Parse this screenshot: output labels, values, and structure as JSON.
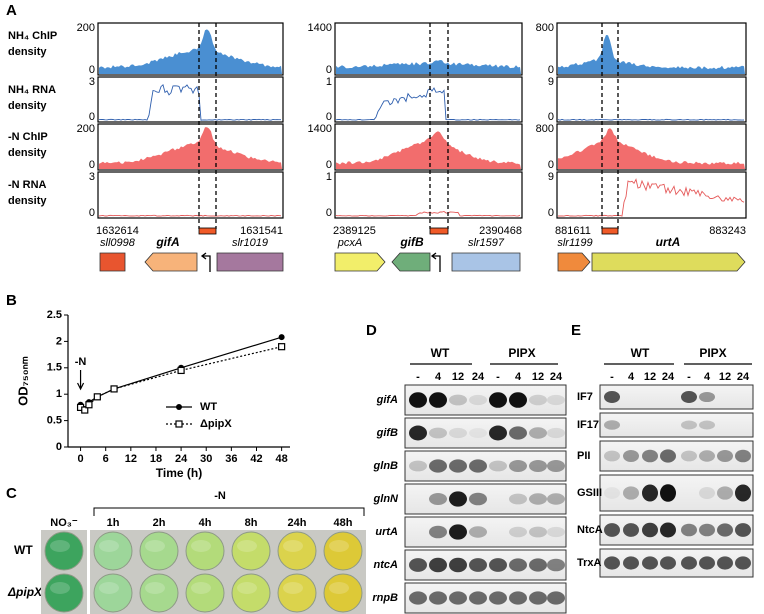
{
  "panel_labels": [
    "A",
    "B",
    "C",
    "D",
    "E"
  ],
  "panel_a": {
    "track_labels": [
      [
        "NH₄ ChIP",
        "density"
      ],
      [
        "NH₄ RNA",
        "density"
      ],
      [
        "-N ChIP",
        "density"
      ],
      [
        "-N RNA",
        "density"
      ]
    ],
    "loci": [
      {
        "ymax": [
          200,
          3,
          200,
          3
        ],
        "ymin": 0,
        "start": 1632614,
        "end": 1631541,
        "genes": [
          {
            "name": "sll0998",
            "color": "#e8552f"
          },
          {
            "name": "gifA",
            "color": "#f7b37a"
          },
          {
            "name": "slr1019",
            "color": "#a5789e"
          }
        ]
      },
      {
        "ymax": [
          1400,
          1,
          1400,
          1
        ],
        "ymin": 0,
        "start": 2389125,
        "end": 2390468,
        "genes": [
          {
            "name": "pcxA",
            "color": "#f2ee6a"
          },
          {
            "name": "gifB",
            "color": "#6fae7a"
          },
          {
            "name": "slr1597",
            "color": "#a9c4e6"
          }
        ]
      },
      {
        "ymax": [
          800,
          9,
          800,
          9
        ],
        "ymin": 0,
        "start": 881611,
        "end": 883243,
        "genes": [
          {
            "name": "slr1199",
            "color": "#f08a3c"
          },
          {
            "name": "urtA",
            "color": "#dedc5c"
          }
        ]
      }
    ]
  },
  "chart_data": {
    "type": "line",
    "x_label": "Time (h)",
    "y_label": "OD₇₅₀ₙₘ",
    "x": [
      0,
      1,
      2,
      4,
      8,
      24,
      48
    ],
    "series": [
      {
        "name": "WT",
        "color": "#000000",
        "marker": "circle",
        "linestyle": "solid",
        "values": [
          0.8,
          0.72,
          0.85,
          0.95,
          1.1,
          1.5,
          2.08
        ]
      },
      {
        "name": "ΔpipX",
        "color": "#000000",
        "marker": "square",
        "linestyle": "dotted",
        "values": [
          0.75,
          0.7,
          0.8,
          0.95,
          1.1,
          1.45,
          1.9
        ]
      }
    ],
    "xlim": [
      -3,
      50
    ],
    "ylim": [
      0,
      2.5
    ],
    "xticks": [
      0,
      6,
      12,
      18,
      24,
      30,
      36,
      42,
      48
    ],
    "yticks": [
      0,
      0.5,
      1,
      1.5,
      2,
      2.5
    ],
    "legend": "lower right",
    "annotation": {
      "text": "-N",
      "x": 0
    }
  },
  "panel_c": {
    "treatment": "-N",
    "columns": [
      "NO₃⁻",
      "1h",
      "2h",
      "4h",
      "8h",
      "24h",
      "48h"
    ],
    "rows": [
      "WT",
      "ΔpipX"
    ]
  },
  "panel_d": {
    "groups": [
      "WT",
      "PIPX"
    ],
    "lanes": [
      "-",
      "4",
      "12",
      "24",
      "-",
      "4",
      "12",
      "24"
    ],
    "rows": [
      "gifA",
      "gifB",
      "glnB",
      "glnN",
      "urtA",
      "ntcA",
      "rnpB"
    ]
  },
  "panel_e": {
    "groups": [
      "WT",
      "PIPX"
    ],
    "lanes": [
      "-",
      "4",
      "12",
      "24",
      "-",
      "4",
      "12",
      "24"
    ],
    "rows": [
      "IF7",
      "IF17",
      "PII",
      "GSIII",
      "NtcA",
      "TrxA"
    ]
  }
}
